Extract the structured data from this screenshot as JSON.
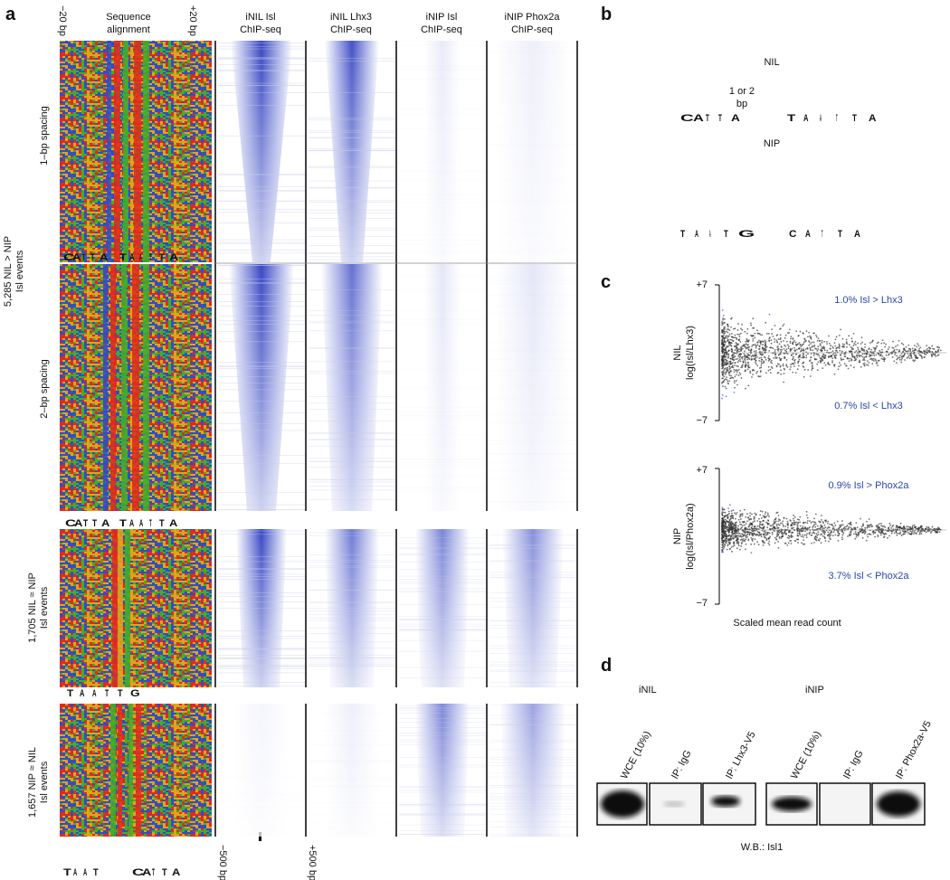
{
  "panel_a": {
    "label": "a",
    "seq_left": "−20 bp",
    "seq_title": [
      "Sequence",
      "alignment"
    ],
    "seq_right": "+20 bp",
    "columns": [
      [
        "iNIL Isl",
        "ChIP-seq"
      ],
      [
        "iNIL Lhx3",
        "ChIP-seq"
      ],
      [
        "iNIP Isl",
        "ChIP-seq"
      ],
      [
        "iNIP Phox2a",
        "ChIP-seq"
      ]
    ],
    "subgroups": [
      "1–bp spacing",
      "2–bp spacing"
    ],
    "groups": [
      [
        "5,285 NIL > NIP",
        "Isl events"
      ],
      [
        "1,705 NIL ≈ NIP",
        "Isl events"
      ],
      [
        "1,657 NIP ≈ NIL",
        "Isl events"
      ]
    ],
    "axis_left": "−500 bp",
    "axis_right": "+500 bp",
    "logos": [
      [
        "C",
        "A",
        "T",
        "T",
        "A"
      ],
      [
        "T",
        "A",
        "A",
        "T",
        "T",
        "A"
      ],
      [
        "C",
        "A",
        "T",
        "T",
        "A"
      ],
      [
        "T",
        "A",
        "A",
        "T",
        "T",
        "A"
      ],
      [
        "T",
        "A",
        "A",
        "T",
        "T",
        "G"
      ],
      [
        "T",
        "A",
        "A",
        "T"
      ],
      [
        "C",
        "A",
        "T",
        "T",
        "A"
      ]
    ]
  },
  "panel_b": {
    "label": "b",
    "nil": "NIL",
    "spacing": [
      "1 or 2",
      "bp"
    ],
    "nip": "NIP",
    "logos": [
      [
        "C",
        "A",
        "T",
        "T",
        "A"
      ],
      [
        "T",
        "A",
        "A",
        "T",
        "T",
        "A"
      ],
      [
        "T",
        "A",
        "A",
        "T",
        "G"
      ],
      [
        "C",
        "A",
        "T",
        "T",
        "A"
      ]
    ]
  },
  "panel_c": {
    "label": "c",
    "top_tick": "+7",
    "bottom_tick": "−7",
    "plots": [
      {
        "ylabel": [
          "NIL",
          "log(Isl/Lhx3)"
        ],
        "upper": "1.0% Isl > Lhx3",
        "lower": "0.7% Isl < Lhx3"
      },
      {
        "ylabel": [
          "NIP",
          "log(Isl/Phox2a)"
        ],
        "upper": "0.9% Isl > Phox2a",
        "lower": "3.7% Isl < Phox2a"
      }
    ],
    "xlabel": "Scaled mean read count"
  },
  "panel_d": {
    "label": "d",
    "groups": [
      "iNIL",
      "iNIP"
    ],
    "lanes": [
      "WCE (10%)",
      "IP: IgG",
      "IP: Lhx3-V5",
      "WCE (10%)",
      "IP: IgG",
      "IP: Phox2a-V5"
    ],
    "footer": "W.B.: Isl1"
  }
}
